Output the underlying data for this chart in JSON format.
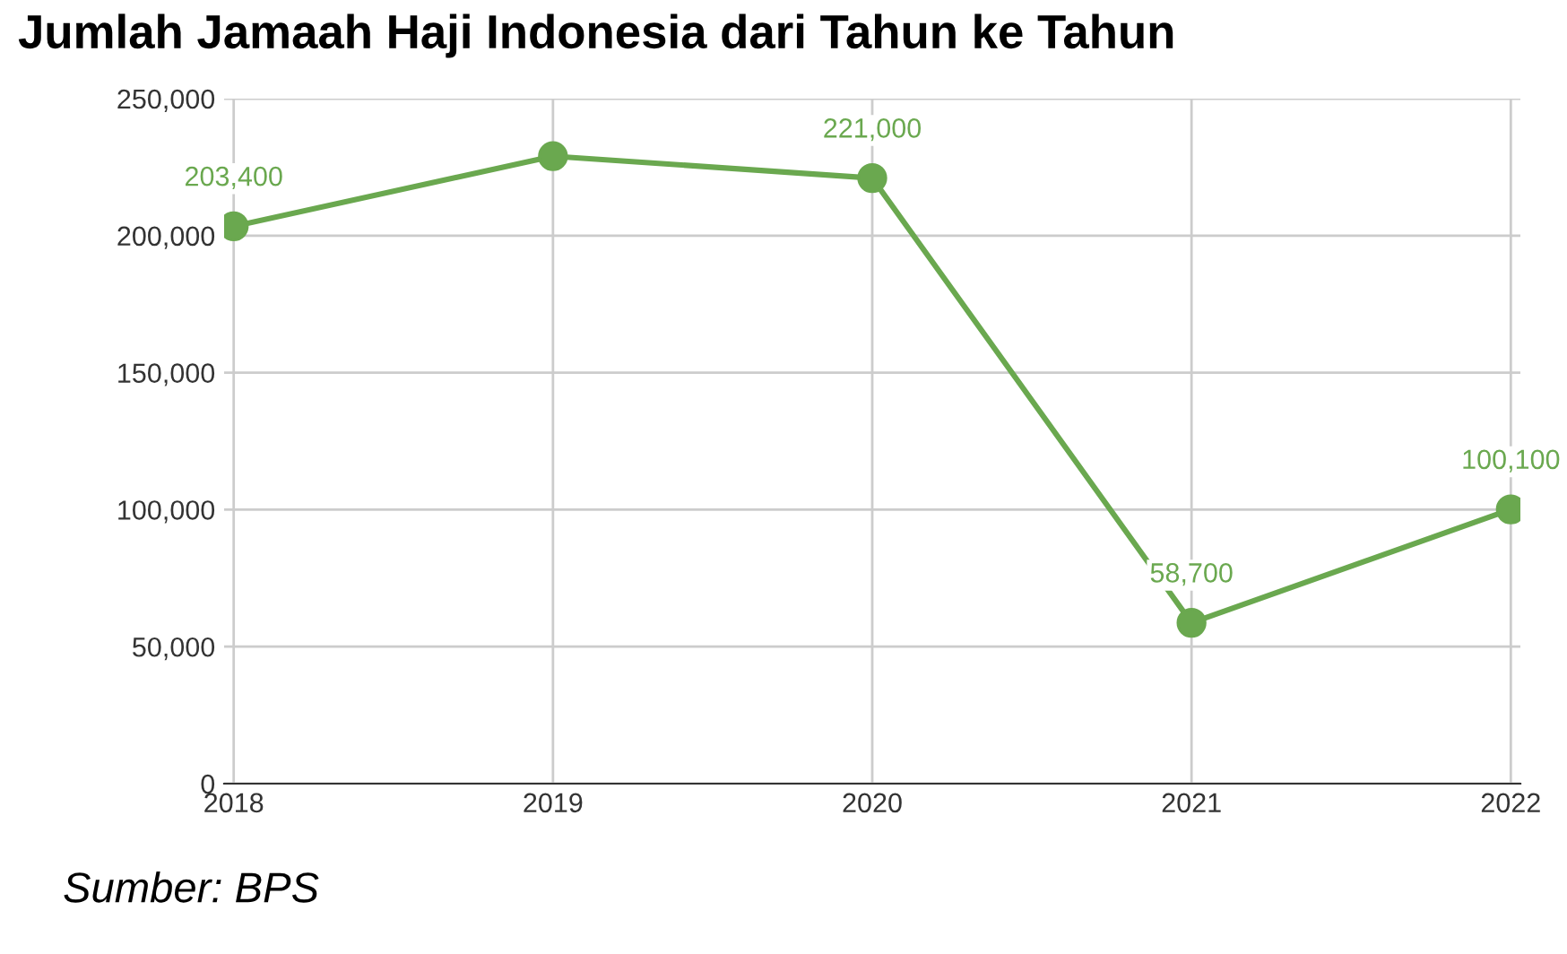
{
  "chart_data": {
    "type": "line",
    "title": "Jumlah Jamaah Haji Indonesia dari Tahun ke Tahun",
    "categories": [
      "2018",
      "2019",
      "2020",
      "2021",
      "2022"
    ],
    "series": [
      {
        "color": "#6aa84f",
        "values": [
          203400,
          229000,
          221000,
          58700,
          100100
        ],
        "value_labels": [
          "203,400",
          null,
          "221,000",
          "58,700",
          "100,100"
        ]
      }
    ],
    "ylim": [
      0,
      250000
    ],
    "yticks": [
      {
        "value": 0,
        "label": "0"
      },
      {
        "value": 50000,
        "label": "50,000"
      },
      {
        "value": 100000,
        "label": "100,000"
      },
      {
        "value": 150000,
        "label": "150,000"
      },
      {
        "value": 200000,
        "label": "200,000"
      },
      {
        "value": 250000,
        "label": "250,000"
      }
    ],
    "grid": true,
    "marker": "circle",
    "line_style": "solid",
    "legend": false,
    "annotations": [
      "Sumber: BPS"
    ]
  }
}
